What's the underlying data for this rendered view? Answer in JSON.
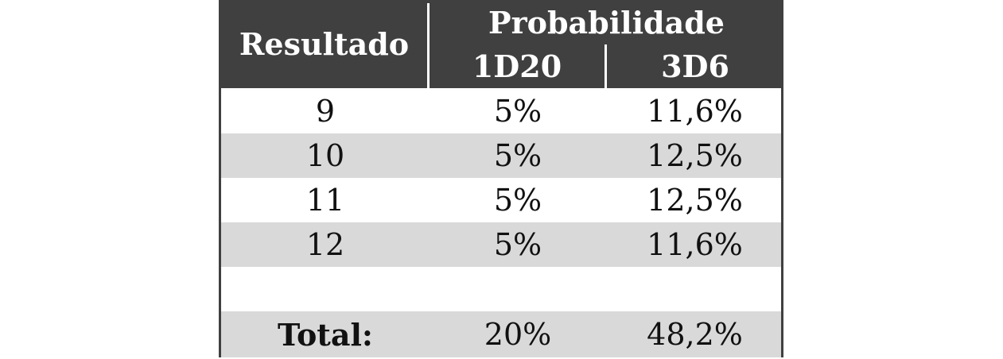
{
  "table": {
    "header": {
      "row_label": "Resultado",
      "group": "Probabilidade",
      "subcolumns": [
        "1D20",
        "3D6"
      ]
    },
    "rows": [
      [
        "9",
        "5%",
        "11,6%"
      ],
      [
        "10",
        "5%",
        "12,5%"
      ],
      [
        "11",
        "5%",
        "12,5%"
      ],
      [
        "12",
        "5%",
        "11,6%"
      ]
    ],
    "total": [
      "Total:",
      "20%",
      "48,2%"
    ]
  }
}
